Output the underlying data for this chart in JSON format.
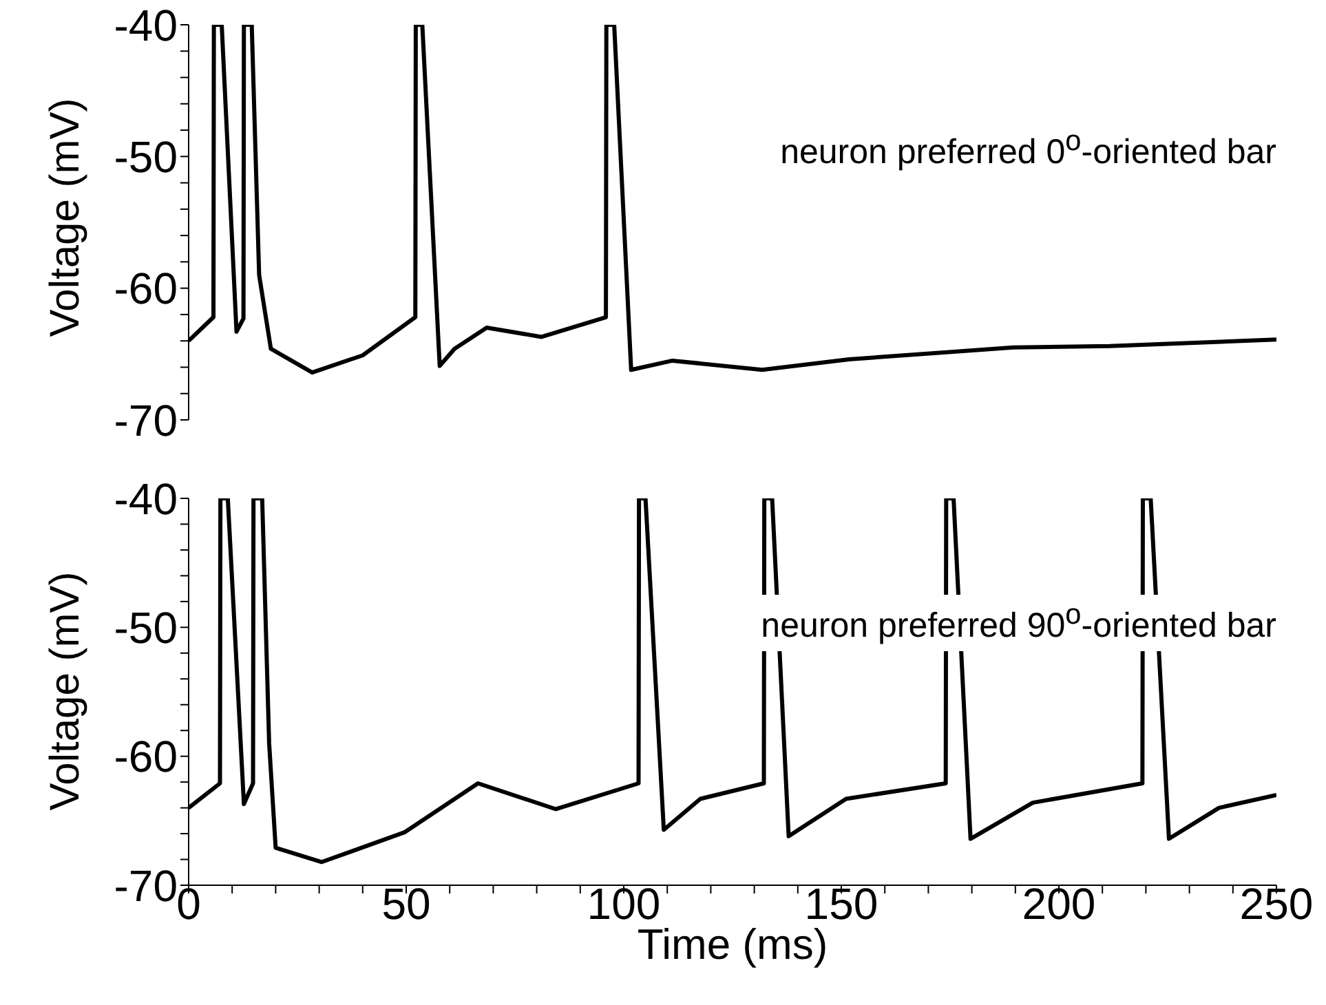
{
  "chart_data": [
    {
      "type": "line",
      "ylabel": "Voltage (mV)",
      "annotations": [
        "neuron preferred 0$^{o}$-oriented bar"
      ],
      "xlim": [
        0,
        250
      ],
      "ylim": [
        -70,
        -40
      ],
      "yticks": [
        -70,
        {
          "value": -68,
          "label": null
        },
        {
          "value": -66,
          "label": null
        },
        {
          "value": -64,
          "label": null
        },
        {
          "value": -62,
          "label": null
        },
        -60,
        {
          "value": -58,
          "label": null
        },
        {
          "value": -56,
          "label": null
        },
        {
          "value": -54,
          "label": null
        },
        {
          "value": -52,
          "label": null
        },
        -50,
        {
          "value": -48,
          "label": null
        },
        {
          "value": -46,
          "label": null
        },
        {
          "value": -44,
          "label": null
        },
        {
          "value": -42,
          "label": null
        },
        -40
      ],
      "tick_labels": "y",
      "marker": "none",
      "line_style": "solid",
      "grid": false,
      "legend": false,
      "series": [
        {
          "color": "#000000",
          "x": [
            0,
            5.7,
            5.8,
            7.6,
            11,
            12.6,
            12.7,
            14.5,
            16.2,
            18.9,
            28.4,
            40,
            52.1,
            52.2,
            53.7,
            57.7,
            61.1,
            68.5,
            81.1,
            95.9,
            96,
            97.8,
            101.7,
            111.2,
            131.8,
            151.8,
            189.5,
            211.7,
            250
          ],
          "values": [
            -64,
            -62.2,
            -40,
            -40,
            -63.3,
            -62.3,
            -40,
            -40,
            -59,
            -64.6,
            -66.4,
            -65.1,
            -62.2,
            -40,
            -40,
            -65.9,
            -64.6,
            -63,
            -63.7,
            -62.2,
            -40,
            -40,
            -66.2,
            -65.5,
            -66.2,
            -65.4,
            -64.5,
            -64.4,
            -63.9
          ]
        }
      ]
    },
    {
      "type": "line",
      "xlabel": "Time (ms)",
      "ylabel": "Voltage (mV)",
      "annotations": [
        "neuron preferred 90$^{o}$-oriented bar"
      ],
      "xlim": [
        0,
        250
      ],
      "ylim": [
        -70,
        -40
      ],
      "xticks": [
        0,
        {
          "value": 10,
          "label": null
        },
        {
          "value": 20,
          "label": null
        },
        {
          "value": 30,
          "label": null
        },
        {
          "value": 40,
          "label": null
        },
        50,
        {
          "value": 60,
          "label": null
        },
        {
          "value": 70,
          "label": null
        },
        {
          "value": 80,
          "label": null
        },
        {
          "value": 90,
          "label": null
        },
        100,
        {
          "value": 110,
          "label": null
        },
        {
          "value": 120,
          "label": null
        },
        {
          "value": 130,
          "label": null
        },
        {
          "value": 140,
          "label": null
        },
        150,
        {
          "value": 160,
          "label": null
        },
        {
          "value": 170,
          "label": null
        },
        {
          "value": 180,
          "label": null
        },
        {
          "value": 190,
          "label": null
        },
        200,
        {
          "value": 210,
          "label": null
        },
        {
          "value": 220,
          "label": null
        },
        {
          "value": 230,
          "label": null
        },
        {
          "value": 240,
          "label": null
        },
        250
      ],
      "yticks": [
        -70,
        {
          "value": -68,
          "label": null
        },
        {
          "value": -66,
          "label": null
        },
        {
          "value": -64,
          "label": null
        },
        {
          "value": -62,
          "label": null
        },
        -60,
        {
          "value": -58,
          "label": null
        },
        {
          "value": -56,
          "label": null
        },
        {
          "value": -54,
          "label": null
        },
        {
          "value": -52,
          "label": null
        },
        -50,
        {
          "value": -48,
          "label": null
        },
        {
          "value": -46,
          "label": null
        },
        {
          "value": -44,
          "label": null
        },
        {
          "value": -42,
          "label": null
        },
        -40
      ],
      "marker": "none",
      "line_style": "solid",
      "grid": false,
      "legend": false,
      "series": [
        {
          "color": "#000000",
          "x": [
            0,
            7.2,
            7.3,
            9,
            12.7,
            14.8,
            14.9,
            16.9,
            18.5,
            20,
            30.6,
            49.6,
            66.5,
            84.4,
            103.4,
            103.5,
            105,
            109.2,
            117.6,
            132.2,
            132.3,
            134.1,
            137.9,
            151.1,
            174,
            174.1,
            175.8,
            179.7,
            194,
            219.2,
            219.3,
            221.1,
            225.3,
            236.8,
            250
          ],
          "values": [
            -64,
            -62.1,
            -40,
            -40,
            -63.7,
            -62.1,
            -40,
            -40,
            -59,
            -67.1,
            -68.2,
            -65.9,
            -62.1,
            -64.1,
            -62.1,
            -40,
            -40,
            -65.7,
            -63.3,
            -62.1,
            -40,
            -40,
            -66.2,
            -63.3,
            -62.1,
            -40,
            -40,
            -66.4,
            -63.6,
            -62.1,
            -40,
            -40,
            -66.4,
            -64,
            -63
          ]
        }
      ]
    }
  ]
}
